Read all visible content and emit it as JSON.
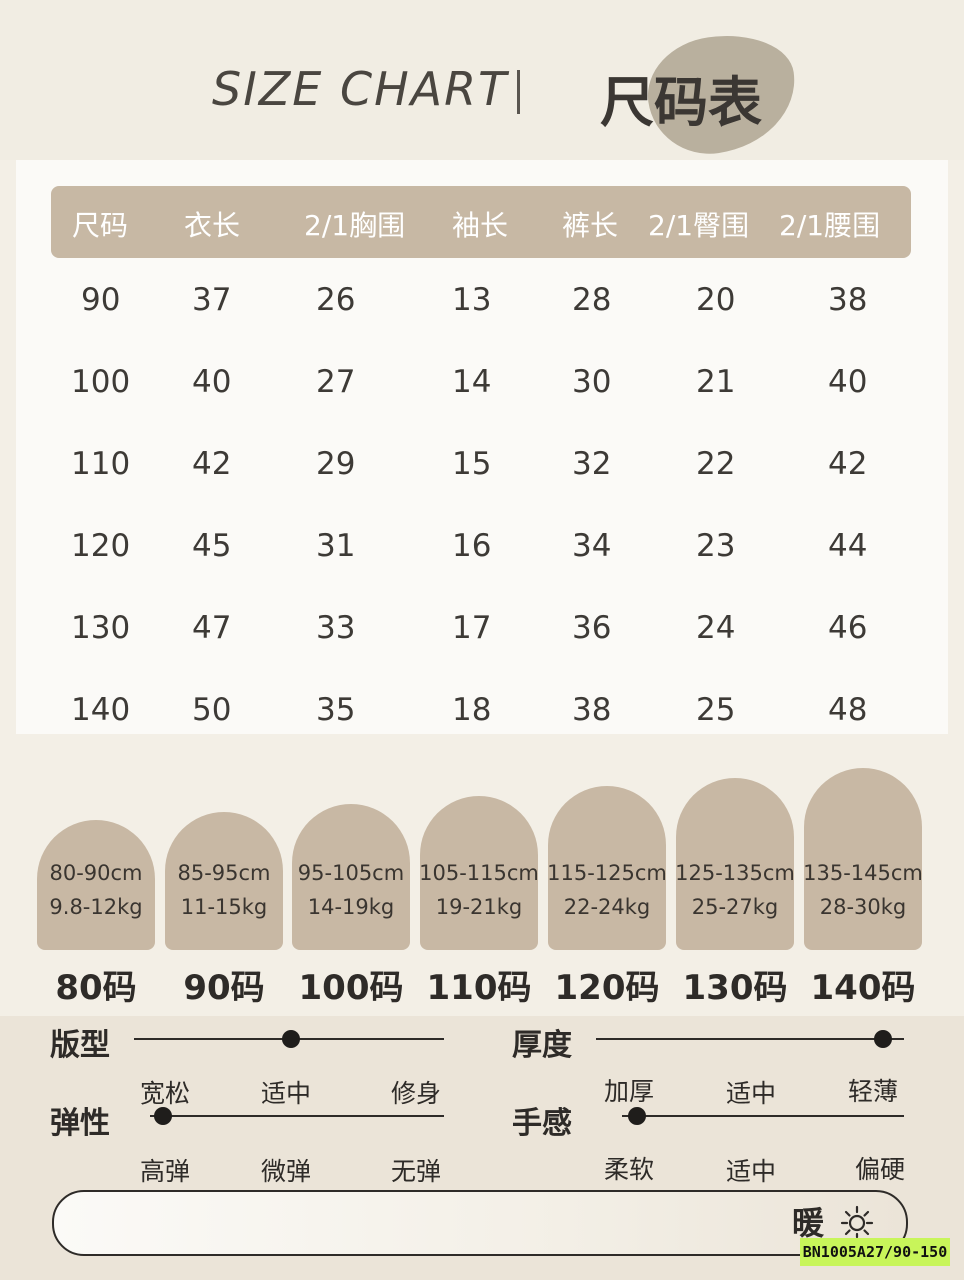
{
  "header": {
    "title_en": "SIZE CHART",
    "title_cn": "尺码表"
  },
  "table": {
    "headers": [
      "尺码",
      "衣长",
      "2/1胸围",
      "袖长",
      "裤长",
      "2/1臀围",
      "2/1腰围"
    ],
    "rows": [
      [
        "90",
        "37",
        "26",
        "13",
        "28",
        "20",
        "38"
      ],
      [
        "100",
        "40",
        "27",
        "14",
        "30",
        "21",
        "40"
      ],
      [
        "110",
        "42",
        "29",
        "15",
        "32",
        "22",
        "42"
      ],
      [
        "120",
        "45",
        "31",
        "16",
        "34",
        "23",
        "44"
      ],
      [
        "130",
        "47",
        "33",
        "17",
        "36",
        "24",
        "46"
      ],
      [
        "140",
        "50",
        "35",
        "18",
        "38",
        "25",
        "48"
      ]
    ]
  },
  "recommendations": [
    {
      "height": "80-90cm",
      "weight": "9.8-12kg",
      "size": "80码"
    },
    {
      "height": "85-95cm",
      "weight": "11-15kg",
      "size": "90码"
    },
    {
      "height": "95-105cm",
      "weight": "14-19kg",
      "size": "100码"
    },
    {
      "height": "105-115cm",
      "weight": "19-21kg",
      "size": "110码"
    },
    {
      "height": "115-125cm",
      "weight": "22-24kg",
      "size": "120码"
    },
    {
      "height": "125-135cm",
      "weight": "25-27kg",
      "size": "130码"
    },
    {
      "height": "135-145cm",
      "weight": "28-30kg",
      "size": "140码"
    }
  ],
  "attributes": {
    "fit": {
      "title": "版型",
      "labels": [
        "宽松",
        "适中",
        "修身"
      ],
      "selected": "适中"
    },
    "elasticity": {
      "title": "弹性",
      "labels": [
        "高弹",
        "微弹",
        "无弹"
      ],
      "selected": "高弹"
    },
    "thickness": {
      "title": "厚度",
      "labels": [
        "加厚",
        "适中",
        "轻薄"
      ],
      "selected": "轻薄"
    },
    "feel": {
      "title": "手感",
      "labels": [
        "柔软",
        "适中",
        "偏硬"
      ],
      "selected": "柔软"
    }
  },
  "warmth": {
    "label": "暖",
    "icon": "sun-icon"
  },
  "product_code": "BN1005A27/90-150"
}
